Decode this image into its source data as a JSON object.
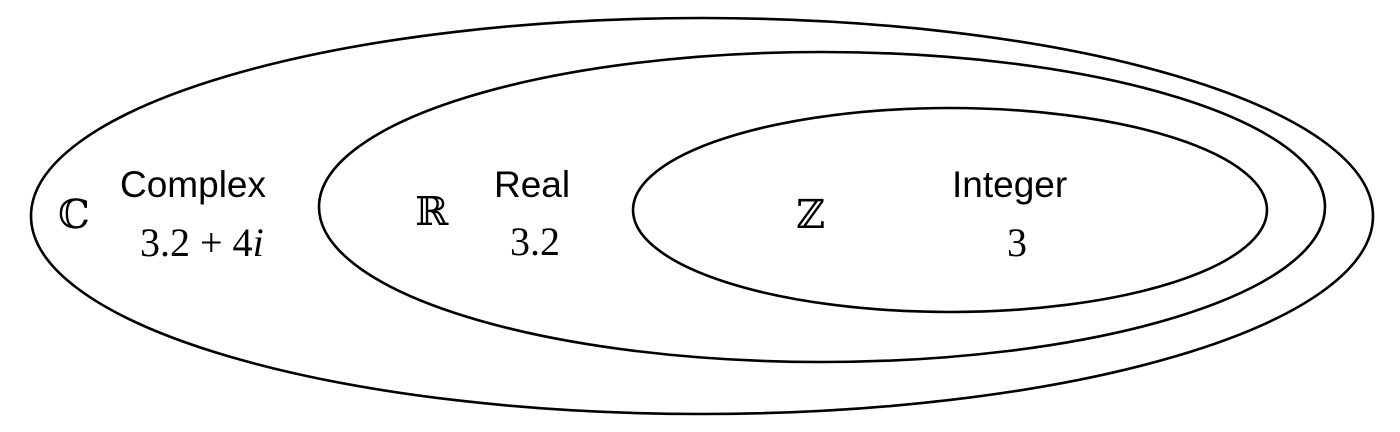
{
  "sets": [
    {
      "id": "complex",
      "symbol": "ℂ",
      "name": "Complex",
      "example_real_part": "3.2 + 4",
      "example_imag_unit": "i"
    },
    {
      "id": "real",
      "symbol": "ℝ",
      "name": "Real",
      "example": "3.2"
    },
    {
      "id": "integer",
      "symbol": "ℤ",
      "name": "Integer",
      "example": "3"
    }
  ]
}
